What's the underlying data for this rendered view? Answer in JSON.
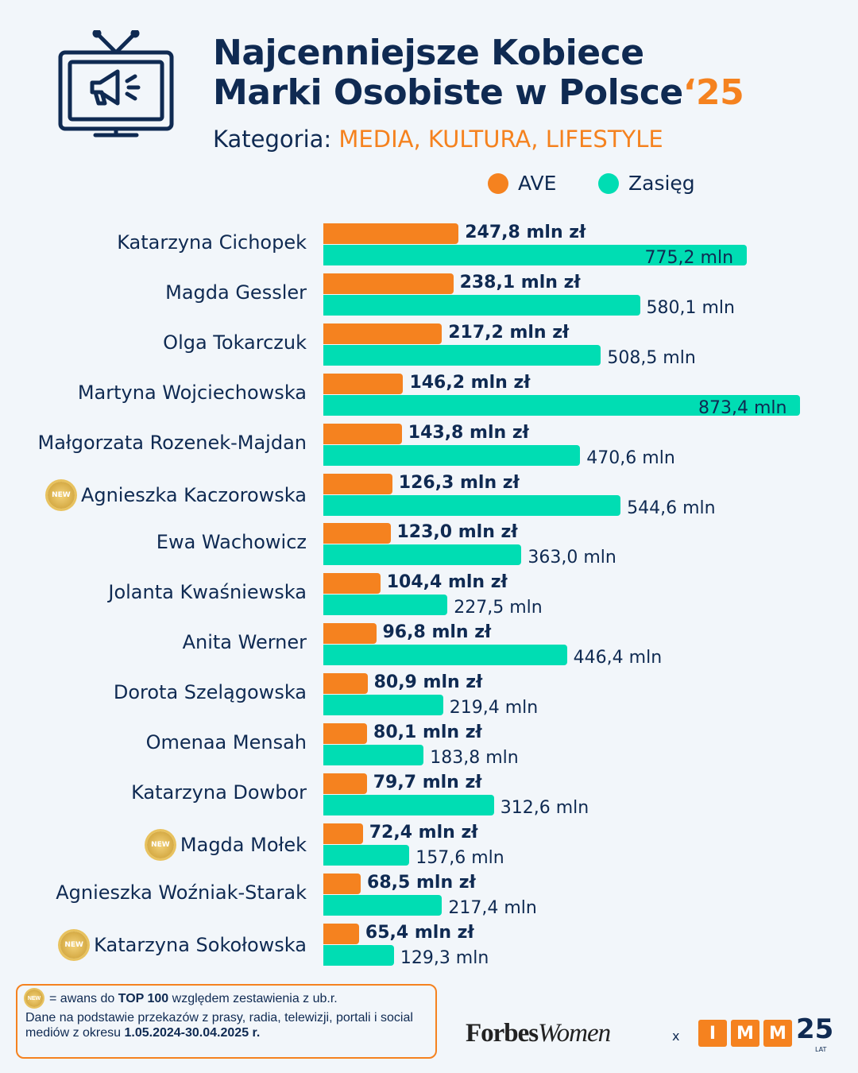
{
  "header": {
    "title_line1": "Najcenniejsze Kobiece",
    "title_line2": "Marki Osobiste w Polsce",
    "title_year": "‘25",
    "category_label": "Kategoria:",
    "category_value": "MEDIA, KULTURA, LIFESTYLE",
    "icon": "tv-megaphone-icon"
  },
  "colors": {
    "ave": "#F5821F",
    "reach": "#00DDB3",
    "text": "#0F2A52",
    "background": "#F2F6FA"
  },
  "chart_data": {
    "type": "bar",
    "orientation": "horizontal",
    "legend": "top-right",
    "grid": false,
    "categories": [
      "Katarzyna Cichopek",
      "Magda Gessler",
      "Olga Tokarczuk",
      "Martyna Wojciechowska",
      "Małgorzata Rozenek-Majdan",
      "Agnieszka Kaczorowska",
      "Ewa Wachowicz",
      "Jolanta Kwaśniewska",
      "Anita Werner",
      "Dorota Szelągowska",
      "Omenaa Mensah",
      "Katarzyna Dowbor",
      "Magda Mołek",
      "Agnieszka Woźniak-Starak",
      "Katarzyna Sokołowska"
    ],
    "new_badge": [
      false,
      false,
      false,
      false,
      false,
      true,
      false,
      false,
      false,
      false,
      false,
      false,
      true,
      false,
      true
    ],
    "series": [
      {
        "name": "AVE",
        "values": [
          247.8,
          238.1,
          217.2,
          146.2,
          143.8,
          126.3,
          123.0,
          104.4,
          96.8,
          80.9,
          80.1,
          79.7,
          72.4,
          68.5,
          65.4
        ],
        "labels": [
          "247,8 mln zł",
          "238,1 mln zł",
          "217,2 mln zł",
          "146,2 mln zł",
          "143,8 mln zł",
          "126,3 mln zł",
          "123,0 mln zł",
          "104,4 mln zł",
          "96,8 mln zł",
          "80,9 mln zł",
          "80,1 mln zł",
          "79,7 mln zł",
          "72,4 mln zł",
          "68,5 mln zł",
          "65,4 mln zł"
        ]
      },
      {
        "name": "Zasięg",
        "values": [
          775.2,
          580.1,
          508.5,
          873.4,
          470.6,
          544.6,
          363.0,
          227.5,
          446.4,
          219.4,
          183.8,
          312.6,
          157.6,
          217.4,
          129.3
        ],
        "labels": [
          "775,2 mln",
          "580,1 mln",
          "508,5 mln",
          "873,4 mln",
          "470,6 mln",
          "544,6 mln",
          "363,0 mln",
          "227,5 mln",
          "446,4 mln",
          "219,4 mln",
          "183,8 mln",
          "312,6 mln",
          "157,6 mln",
          "217,4 mln",
          "129,3 mln"
        ]
      }
    ]
  },
  "footer": {
    "badge_text": "NEW",
    "legend_eq": "= awans do ",
    "legend_bold": "TOP 100",
    "legend_rest": " względem zestawienia z ub.r.",
    "source_text": "Dane na podstawie przekazów z prasy, radia, telewizji, portali i social mediów z okresu ",
    "source_period": "1.05.2024-30.04.2025 r.",
    "logo_forbes": "Forbes",
    "logo_women": "Women",
    "x": "x",
    "imm": [
      "I",
      "M",
      "M"
    ],
    "imm_years": "25",
    "imm_lat": "LAT"
  }
}
